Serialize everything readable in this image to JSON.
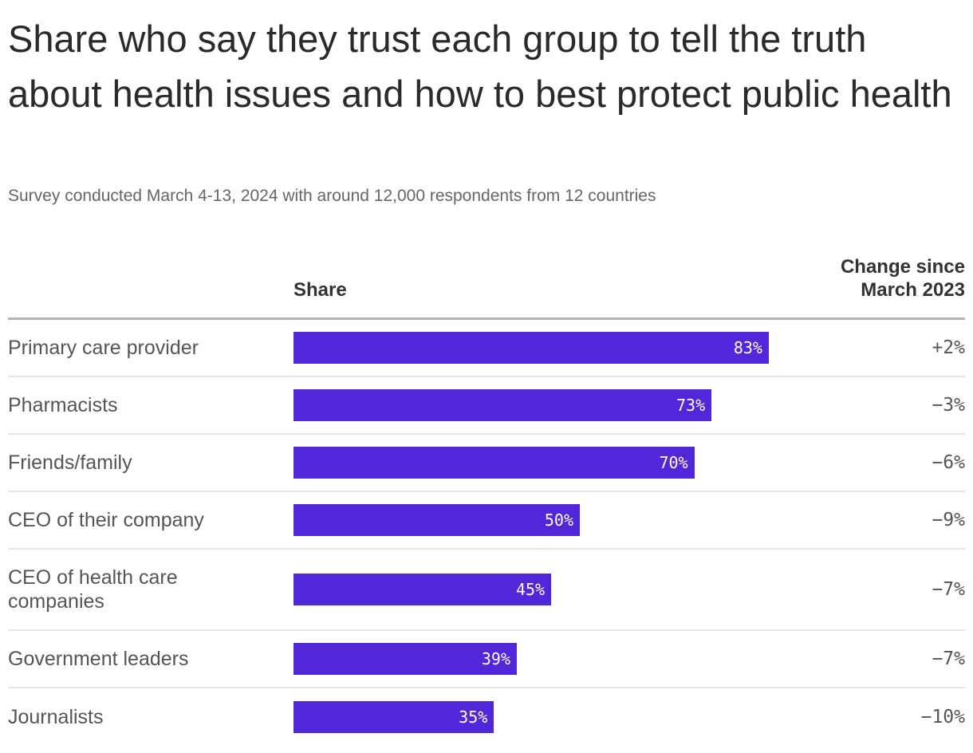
{
  "chart_data": {
    "type": "bar",
    "orientation": "horizontal",
    "title": "Share who say they trust each group to tell the truth about health issues and how to best protect public health",
    "subtitle": "Survey conducted March 4-13, 2024 with around 12,000 respondents from 12 countries",
    "columns": {
      "share": "Share",
      "change": "Change since March 2023"
    },
    "categories": [
      "Primary care provider",
      "Pharmacists",
      "Friends/family",
      "CEO of their company",
      "CEO of health care companies",
      "Government leaders",
      "Journalists"
    ],
    "values": [
      83,
      73,
      70,
      50,
      45,
      39,
      35
    ],
    "value_labels": [
      "83%",
      "73%",
      "70%",
      "50%",
      "45%",
      "39%",
      "35%"
    ],
    "change_labels": [
      "+2%",
      "−3%",
      "−6%",
      "−9%",
      "−7%",
      "−7%",
      "−10%"
    ],
    "changes": [
      2,
      -3,
      -6,
      -9,
      -7,
      -7,
      -10
    ],
    "xlim": [
      0,
      100
    ],
    "bar_color": "#5226d9"
  }
}
